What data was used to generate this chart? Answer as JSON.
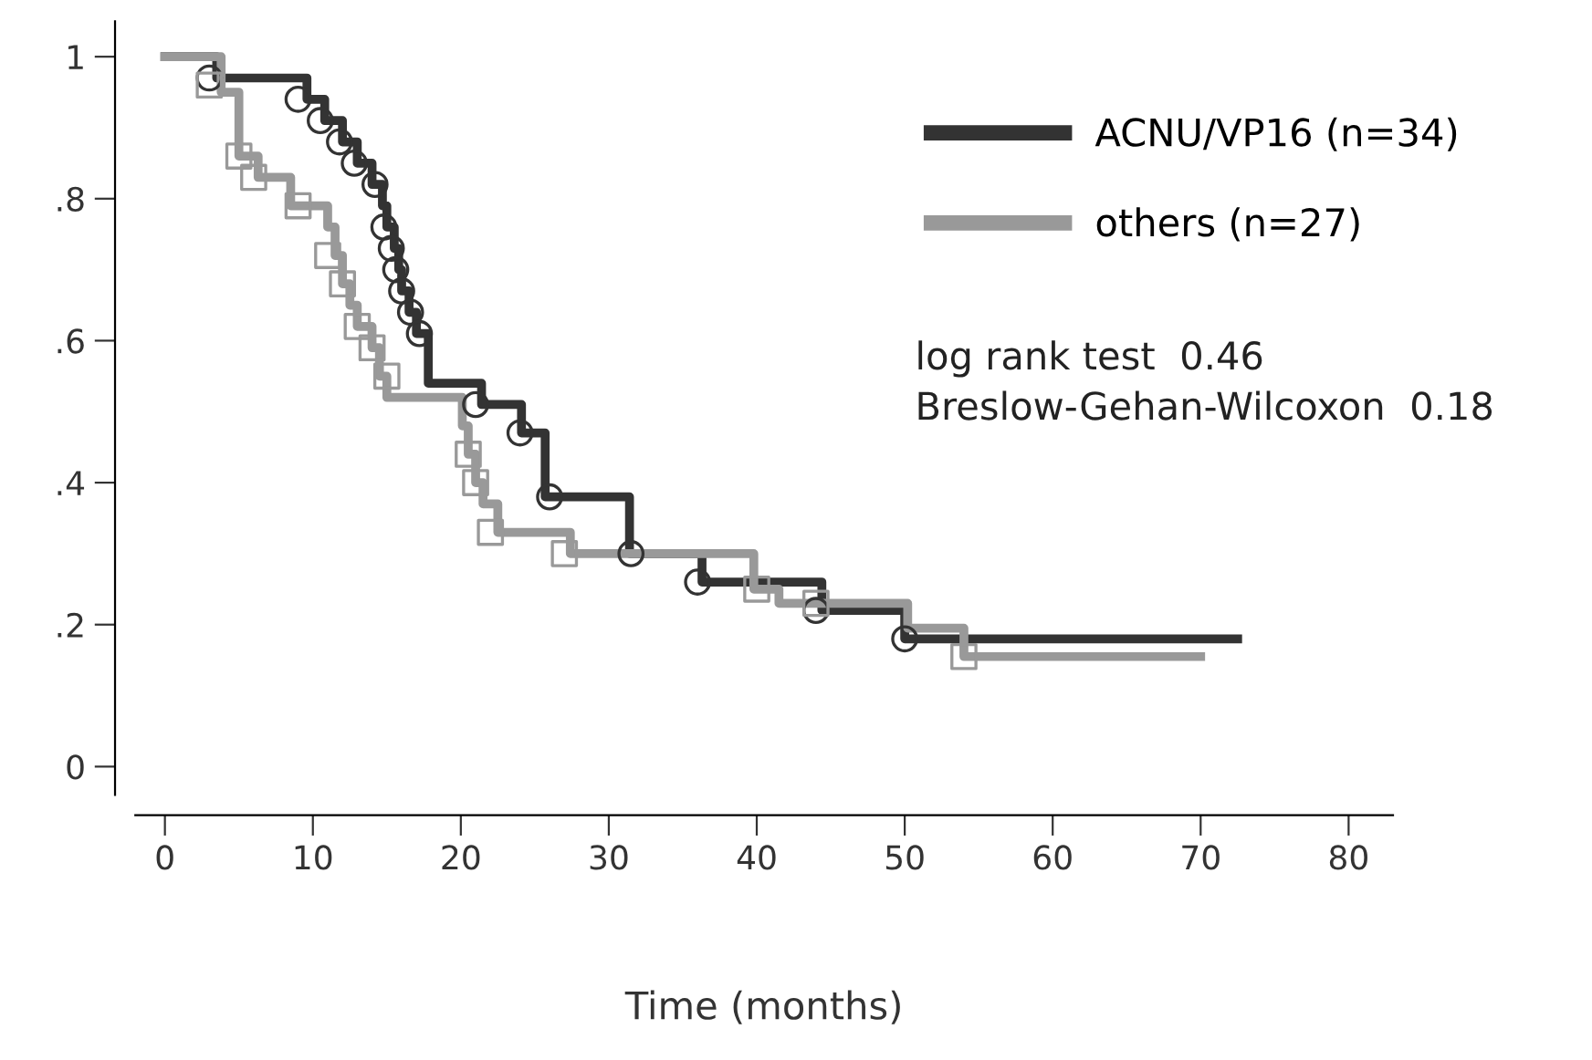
{
  "chart_data": {
    "type": "step",
    "xlabel": "Time (months)",
    "xlim": [
      -2,
      83
    ],
    "xticks": [
      0,
      10,
      20,
      30,
      40,
      50,
      60,
      70,
      80
    ],
    "ylim": [
      -0.04,
      1.05
    ],
    "yticks": [
      {
        "value": 0,
        "label": "0"
      },
      {
        "value": 0.2,
        "label": ".2"
      },
      {
        "value": 0.4,
        "label": ".4"
      },
      {
        "value": 0.6,
        "label": ".6"
      },
      {
        "value": 0.8,
        "label": ".8"
      },
      {
        "value": 1,
        "label": "1"
      }
    ],
    "grid": false,
    "legend": "top right",
    "line_style": "solid",
    "series": [
      {
        "name": "ACNU/VP16 (n=34)",
        "color": "#333333",
        "x": [
          0,
          3.5,
          9.6,
          10.8,
          12,
          13,
          14,
          14.7,
          15,
          15.5,
          15.8,
          16,
          16.5,
          17,
          17.8,
          21.4,
          24.1,
          25.7,
          31.4,
          36.3,
          44.4,
          50,
          72.5
        ],
        "values": [
          1.0,
          0.97,
          0.94,
          0.91,
          0.88,
          0.85,
          0.82,
          0.79,
          0.76,
          0.73,
          0.7,
          0.67,
          0.64,
          0.61,
          0.54,
          0.51,
          0.47,
          0.38,
          0.3,
          0.26,
          0.22,
          0.18,
          0.18
        ]
      },
      {
        "name": "others (n=27)",
        "color": "#999999",
        "x": [
          0,
          3.8,
          5,
          6.3,
          8.5,
          11,
          11.5,
          12,
          12.5,
          13,
          14,
          14.5,
          15,
          20.1,
          20.5,
          21,
          21.5,
          22.5,
          27.4,
          39.8,
          41.5,
          50.2,
          54,
          70
        ],
        "values": [
          1.0,
          0.95,
          0.86,
          0.83,
          0.79,
          0.76,
          0.72,
          0.68,
          0.65,
          0.62,
          0.59,
          0.55,
          0.52,
          0.48,
          0.44,
          0.4,
          0.37,
          0.33,
          0.3,
          0.25,
          0.23,
          0.195,
          0.155,
          0.155
        ]
      },
      {
        "type": "scatter",
        "marker": "circle",
        "color": "#333333",
        "x": [
          3,
          9,
          10.5,
          11.8,
          12.8,
          14.2,
          14.8,
          15.3,
          15.6,
          16,
          16.6,
          17.2,
          21,
          24,
          26,
          31.5,
          36,
          44,
          50
        ],
        "values": [
          0.97,
          0.94,
          0.91,
          0.88,
          0.85,
          0.82,
          0.76,
          0.73,
          0.7,
          0.67,
          0.64,
          0.61,
          0.51,
          0.47,
          0.38,
          0.3,
          0.26,
          0.22,
          0.18
        ]
      },
      {
        "type": "scatter",
        "marker": "square",
        "color": "#999999",
        "x": [
          3,
          5,
          6,
          9,
          11,
          12,
          13,
          14,
          15,
          20.5,
          21,
          22,
          27,
          40,
          44,
          54
        ],
        "values": [
          0.96,
          0.86,
          0.83,
          0.79,
          0.72,
          0.68,
          0.62,
          0.59,
          0.55,
          0.44,
          0.4,
          0.33,
          0.3,
          0.25,
          0.23,
          0.155
        ]
      }
    ],
    "annotations": [
      "log rank test  0.46",
      "Breslow-Gehan-Wilcoxon  0.18"
    ]
  }
}
